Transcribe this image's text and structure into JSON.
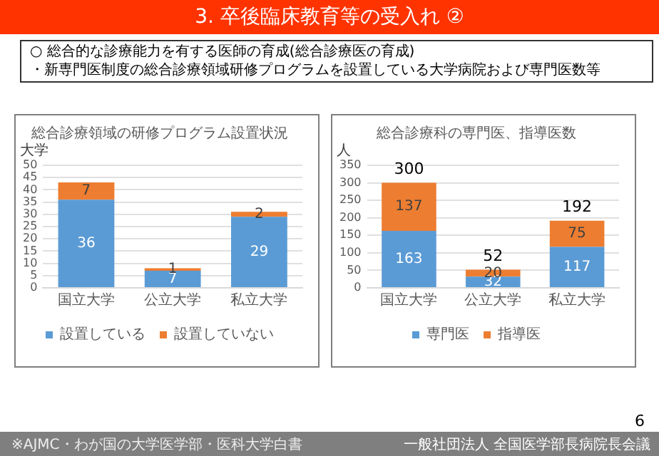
{
  "chart_data": [
    {
      "type": "other",
      "title": "3. 卒後臨床教育等の受入れ ②",
      "annotations": [
        "○ 総合的な診療能力を有する医師の育成(総合診療医の育成)",
        "・新専門医制度の総合診療領域研修プログラムを設置している大学病院および専門医数等",
        "※AJMC・わが国の大学医学部・医科大学白書",
        "6",
        "一般社団法人 全国医学部長病院長会議"
      ]
    },
    {
      "type": "bar",
      "title": "総合診療領域の研修プログラム設置状況",
      "ylabel": "大学",
      "categories": [
        "国立大学",
        "公立大学",
        "私立大学"
      ],
      "stacked": true,
      "data_labels": true,
      "legend": "bottom",
      "grid": "y",
      "ylim": [
        0,
        50
      ],
      "yticks": [
        0,
        5,
        10,
        15,
        20,
        25,
        30,
        35,
        40,
        45,
        50
      ],
      "series": [
        {
          "name": "設置している",
          "color": "#5b9bd5",
          "values": [
            36,
            7,
            29
          ]
        },
        {
          "name": "設置していない",
          "color": "#ed7d31",
          "values": [
            7,
            1,
            2
          ]
        }
      ]
    },
    {
      "type": "bar",
      "title": "総合診療科の専門医、指導医数",
      "ylabel": "人",
      "categories": [
        "国立大学",
        "公立大学",
        "私立大学"
      ],
      "stacked": true,
      "data_labels": true,
      "legend": "bottom",
      "grid": "y",
      "ylim": [
        0,
        350
      ],
      "yticks": [
        0,
        50,
        100,
        150,
        200,
        250,
        300,
        350
      ],
      "totals": [
        "300",
        "52",
        "192"
      ],
      "series": [
        {
          "name": "専門医",
          "color": "#5b9bd5",
          "values": [
            163,
            32,
            117
          ]
        },
        {
          "name": "指導医",
          "color": "#ed7d31",
          "values": [
            137,
            20,
            75
          ]
        }
      ]
    }
  ]
}
